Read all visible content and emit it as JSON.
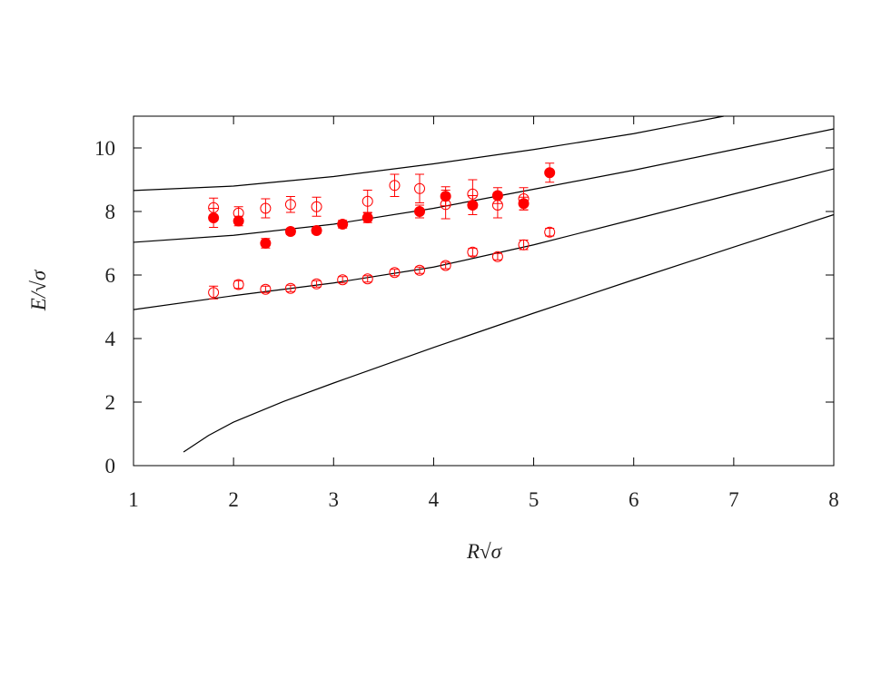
{
  "chart_data": {
    "type": "scatter",
    "xlabel": "R√σ",
    "ylabel": "E/√σ",
    "xlim": [
      1,
      8
    ],
    "ylim": [
      0,
      11
    ],
    "xticks": [
      1,
      2,
      3,
      4,
      5,
      6,
      7,
      8
    ],
    "yticks": [
      0,
      2,
      4,
      6,
      8,
      10
    ],
    "series": [
      {
        "kind": "line",
        "color": "#000000",
        "x": [
          1.5,
          1.75,
          2,
          2.5,
          3,
          4,
          5,
          6,
          7,
          8
        ],
        "values": [
          0.43,
          0.95,
          1.37,
          2.02,
          2.6,
          3.72,
          4.8,
          5.85,
          6.88,
          7.9
        ]
      },
      {
        "kind": "line",
        "color": "#000000",
        "x": [
          1,
          2,
          3,
          4,
          5,
          6,
          7,
          8
        ],
        "values": [
          4.91,
          5.35,
          5.75,
          6.25,
          6.95,
          7.75,
          8.55,
          9.34
        ]
      },
      {
        "kind": "line",
        "color": "#000000",
        "x": [
          1,
          2,
          3,
          4,
          5,
          6,
          7,
          8
        ],
        "values": [
          7.03,
          7.25,
          7.6,
          8.1,
          8.7,
          9.3,
          9.95,
          10.6
        ]
      },
      {
        "kind": "line",
        "color": "#000000",
        "x": [
          1,
          2,
          3,
          4,
          5,
          6,
          6.9
        ],
        "values": [
          8.66,
          8.8,
          9.1,
          9.5,
          9.95,
          10.45,
          11
        ]
      },
      {
        "kind": "points",
        "marker": "open",
        "color": "#ff0000",
        "x": [
          1.8,
          2.05,
          2.32,
          2.57,
          2.83,
          3.09,
          3.34,
          3.61,
          3.86,
          4.12,
          4.39,
          4.64,
          4.9,
          5.16
        ],
        "values": [
          5.45,
          5.7,
          5.55,
          5.58,
          5.72,
          5.85,
          5.88,
          6.08,
          6.15,
          6.3,
          6.72,
          6.58,
          6.95,
          7.35
        ],
        "errors": [
          0.2,
          0.12,
          0.1,
          0.1,
          0.1,
          0.1,
          0.1,
          0.1,
          0.1,
          0.1,
          0.12,
          0.1,
          0.15,
          0.12
        ]
      },
      {
        "kind": "points",
        "marker": "open",
        "color": "#ff0000",
        "x": [
          1.8,
          2.05,
          2.32,
          2.57,
          2.83,
          3.34,
          3.61,
          3.86,
          4.12,
          4.39,
          4.64,
          4.9
        ],
        "values": [
          8.12,
          7.95,
          8.1,
          8.22,
          8.15,
          8.32,
          8.82,
          8.72,
          8.22,
          8.55,
          8.2,
          8.4
        ],
        "errors": [
          0.3,
          0.2,
          0.3,
          0.25,
          0.3,
          0.35,
          0.35,
          0.45,
          0.45,
          0.45,
          0.4,
          0.35
        ]
      },
      {
        "kind": "points",
        "marker": "filled",
        "color": "#ff0000",
        "x": [
          1.8,
          2.05,
          2.32,
          2.57,
          2.83,
          3.09,
          3.34,
          3.86,
          4.12,
          4.39,
          4.64,
          4.9,
          5.16
        ],
        "values": [
          7.8,
          7.7,
          7.0,
          7.37,
          7.4,
          7.6,
          7.8,
          8.0,
          8.48,
          8.2,
          8.5,
          8.25,
          9.22
        ],
        "errors": [
          0.3,
          0.15,
          0.15,
          0.1,
          0.1,
          0.12,
          0.15,
          0.2,
          0.3,
          0.3,
          0.25,
          0.2,
          0.3
        ]
      }
    ]
  }
}
